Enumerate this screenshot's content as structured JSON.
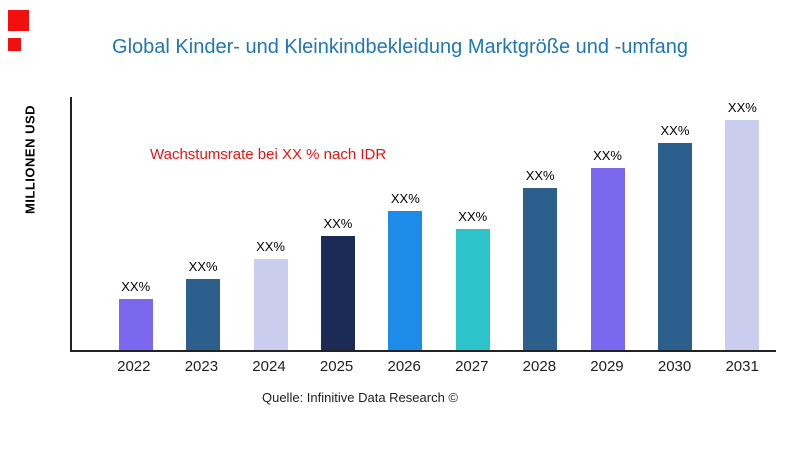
{
  "branding": {
    "accent_red": "#F20F0F"
  },
  "header": {
    "title_color": "#2176B5"
  },
  "chart_data": {
    "type": "bar",
    "title": "Global Kinder- und Kleinkindbekleidung Marktgröße und -umfang",
    "ylabel": "MILLIONEN USD",
    "xlabel": "",
    "annotation": "Wachstumsrate bei XX % nach IDR",
    "annotation_color": "#F20F0F",
    "source": "Quelle: Infinitive Data Research ©",
    "categories": [
      "2022",
      "2023",
      "2024",
      "2025",
      "2026",
      "2027",
      "2028",
      "2029",
      "2030",
      "2031"
    ],
    "values": [
      20,
      28,
      36,
      45,
      55,
      48,
      64,
      72,
      82,
      91
    ],
    "value_labels": [
      "XX%",
      "XX%",
      "XX%",
      "XX%",
      "XX%",
      "XX%",
      "XX%",
      "XX%",
      "XX%",
      "XX%"
    ],
    "bar_colors": [
      "#7B68EE",
      "#2D5F8D",
      "#CBCDEE",
      "#1B2B55",
      "#1D8CE8",
      "#2EC4CB",
      "#2D5F8D",
      "#7B68EE",
      "#2D5F8D",
      "#CBCDEE"
    ],
    "ylim": [
      0,
      100
    ],
    "grid": false,
    "legend": false
  }
}
